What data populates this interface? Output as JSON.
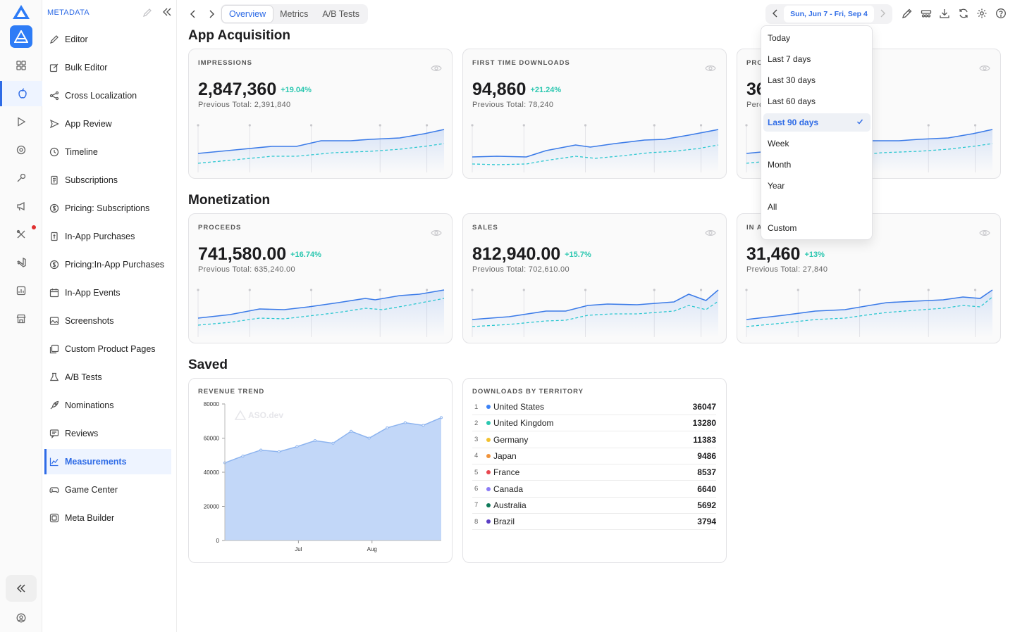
{
  "rail": {
    "icons": [
      "aso-logo-icon",
      "app-icon",
      "grid-icon",
      "apple-icon",
      "play-icon",
      "target-icon",
      "wrench-icon",
      "megaphone-icon",
      "tools-icon",
      "vscode-icon",
      "chart-box-icon",
      "store-icon"
    ],
    "active": "apple-icon"
  },
  "sidebar": {
    "title": "METADATA",
    "items": [
      {
        "label": "Editor",
        "icon": "pencil-icon"
      },
      {
        "label": "Bulk Editor",
        "icon": "edit-box-icon"
      },
      {
        "label": "Cross Localization",
        "icon": "share-icon"
      },
      {
        "label": "App Review",
        "icon": "send-icon"
      },
      {
        "label": "Timeline",
        "icon": "history-icon"
      },
      {
        "label": "Subscriptions",
        "icon": "receipt-icon"
      },
      {
        "label": "Pricing: Subscriptions",
        "icon": "dollar-icon"
      },
      {
        "label": "In-App Purchases",
        "icon": "iap-icon"
      },
      {
        "label": "Pricing:In-App Purchases",
        "icon": "dollar-icon"
      },
      {
        "label": "In-App Events",
        "icon": "calendar-icon"
      },
      {
        "label": "Screenshots",
        "icon": "image-icon"
      },
      {
        "label": "Custom Product Pages",
        "icon": "pages-icon"
      },
      {
        "label": "A/B Tests",
        "icon": "flask-icon"
      },
      {
        "label": "Nominations",
        "icon": "rocket-icon"
      },
      {
        "label": "Reviews",
        "icon": "review-icon"
      },
      {
        "label": "Measurements",
        "icon": "chart-line-icon"
      },
      {
        "label": "Game Center",
        "icon": "gamepad-icon"
      },
      {
        "label": "Meta Builder",
        "icon": "builder-icon"
      }
    ],
    "active_item": "Measurements"
  },
  "topbar": {
    "tabs": [
      "Overview",
      "Metrics",
      "A/B Tests"
    ],
    "active_tab": "Overview",
    "date_range": "Sun, Jun 7 - Fri, Sep 4"
  },
  "sections": {
    "acquisition": "App Acquisition",
    "monetization": "Monetization",
    "saved": "Saved"
  },
  "cards": {
    "impressions": {
      "label": "IMPRESSIONS",
      "value": "2,847,360",
      "delta": "+19.04%",
      "previous": "Previous Total: 2,391,840"
    },
    "downloads": {
      "label": "FIRST TIME DOWNLOADS",
      "value": "94,860",
      "delta": "+21.24%",
      "previous": "Previous Total: 78,240"
    },
    "conversion": {
      "label": "PRO",
      "value": "36",
      "previous": "Perc"
    },
    "proceeds": {
      "label": "PROCEEDS",
      "value": "741,580.00",
      "delta": "+16.74%",
      "previous": "Previous Total: 635,240.00"
    },
    "sales": {
      "label": "SALES",
      "value": "812,940.00",
      "delta": "+15.7%",
      "previous": "Previous Total: 702,610.00"
    },
    "iap": {
      "label": "IN A",
      "value": "31,460",
      "delta": "+13%",
      "previous": "Previous Total: 27,840"
    }
  },
  "revenue_trend": {
    "label": "REVENUE TREND",
    "watermark": "ASO.dev"
  },
  "chart_data": {
    "type": "area",
    "title": "REVENUE TREND",
    "x_tick_labels": [
      "Jul",
      "Aug"
    ],
    "x": [
      0,
      1,
      2,
      3,
      4,
      5,
      6,
      7,
      8,
      9,
      10,
      11,
      12
    ],
    "values": [
      45500,
      49500,
      53000,
      52000,
      55000,
      58500,
      57000,
      64000,
      60000,
      66000,
      69000,
      67500,
      72000
    ],
    "ylim": [
      0,
      80000
    ],
    "yticks": [
      0,
      20000,
      40000,
      60000,
      80000
    ],
    "grid": false,
    "colors": {
      "fill": "#c2d7f8",
      "line": "#8db4ef"
    }
  },
  "territories": {
    "label": "DOWNLOADS BY TERRITORY",
    "rows": [
      {
        "rank": "1",
        "name": "United States",
        "value": "36047",
        "color": "#3b82f6"
      },
      {
        "rank": "2",
        "name": "United Kingdom",
        "value": "13280",
        "color": "#2bc7b0"
      },
      {
        "rank": "3",
        "name": "Germany",
        "value": "11383",
        "color": "#f2c12e"
      },
      {
        "rank": "4",
        "name": "Japan",
        "value": "9486",
        "color": "#f0933a"
      },
      {
        "rank": "5",
        "name": "France",
        "value": "8537",
        "color": "#e8474f"
      },
      {
        "rank": "6",
        "name": "Canada",
        "value": "6640",
        "color": "#8b7cf6"
      },
      {
        "rank": "7",
        "name": "Australia",
        "value": "5692",
        "color": "#0f7a5a"
      },
      {
        "rank": "8",
        "name": "Brazil",
        "value": "3794",
        "color": "#5b3fc4"
      }
    ]
  },
  "date_dropdown": {
    "options": [
      "Today",
      "Last 7 days",
      "Last 30 days",
      "Last 60 days",
      "Last 90 days",
      "Week",
      "Month",
      "Year",
      "All",
      "Custom"
    ],
    "selected": "Last 90 days"
  },
  "colors": {
    "accent": "#2e6be6",
    "positive": "#2bc7b0",
    "spark_solid": "#3b7be8",
    "spark_dashed": "#2bc7d0"
  }
}
